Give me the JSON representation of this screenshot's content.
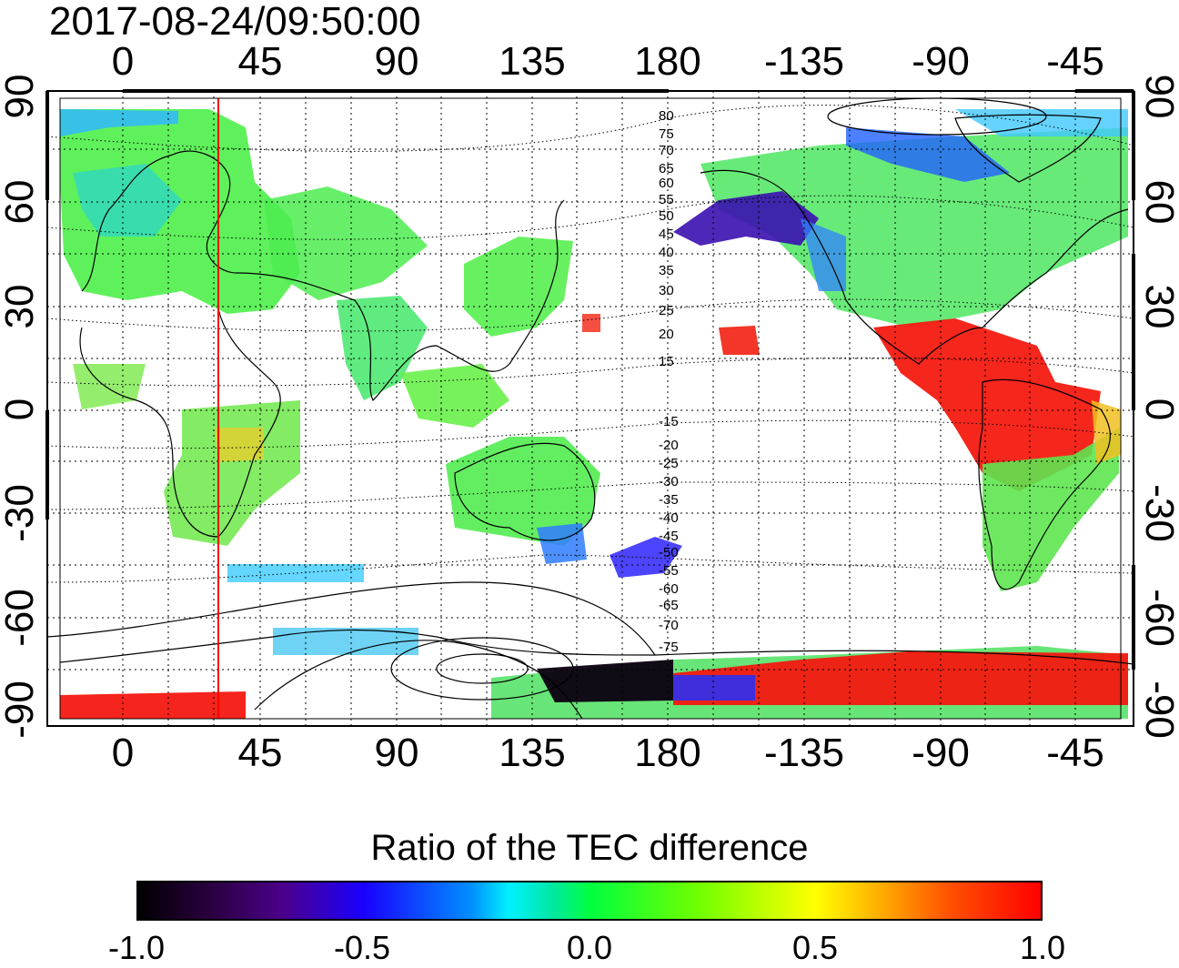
{
  "title": "2017-08-24/09:50:00",
  "axes": {
    "x_ticks": [
      "0",
      "45",
      "90",
      "135",
      "180",
      "-135",
      "-90",
      "-45"
    ],
    "y_left_ticks": [
      "90",
      "60",
      "30",
      "0",
      "-30",
      "-60",
      "-90"
    ],
    "y_right_ticks": [
      "90",
      "60",
      "30",
      "0",
      "-30",
      "-60",
      "-90"
    ],
    "xlim": [
      -20,
      340
    ],
    "ylim": [
      -90,
      90
    ]
  },
  "map": {
    "projection": "equirectangular",
    "grid": "dotted, every 15 degrees",
    "meridian_marker_longitude": 30,
    "meridian_marker_color": "#ff0000",
    "contour_labels": [
      "80",
      "75",
      "70",
      "65",
      "60",
      "55",
      "50",
      "45",
      "40",
      "35",
      "30",
      "25",
      "20",
      "15",
      "-15",
      "-20",
      "-25",
      "-30",
      "-35",
      "-40",
      "-45",
      "-50",
      "-55",
      "-60",
      "-65",
      "-70",
      "-75"
    ]
  },
  "colorbar": {
    "title": "Ratio of the TEC difference",
    "ticks": [
      "-1.0",
      "-0.5",
      "0.0",
      "0.5",
      "1.0"
    ],
    "range": [
      -1.0,
      1.0
    ]
  }
}
